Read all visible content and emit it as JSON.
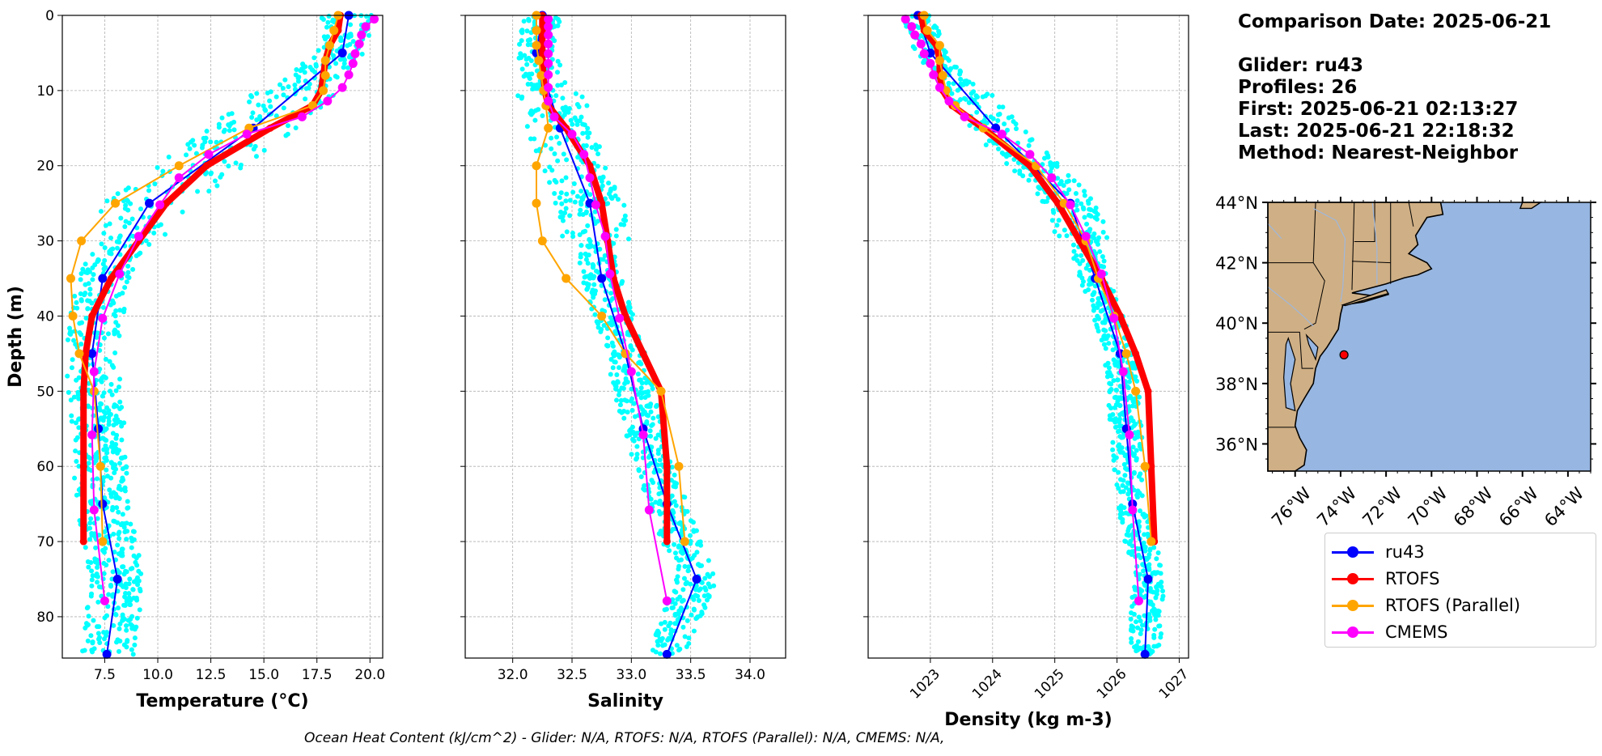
{
  "info": {
    "comparison": "Comparison Date: 2025-06-21",
    "glider": "Glider: ru43",
    "profiles": "Profiles: 26",
    "first": "First: 2025-06-21 02:13:27",
    "last": "Last: 2025-06-21 22:18:32",
    "method": "Method: Nearest-Neighbor"
  },
  "footer": "Ocean Heat Content (kJ/cm^2) - Glider: N/A,  RTOFS: N/A,  RTOFS (Parallel): N/A,  CMEMS: N/A,",
  "legend": [
    {
      "label": "ru43",
      "color": "#0000ff"
    },
    {
      "label": "RTOFS",
      "color": "#ff0000"
    },
    {
      "label": "RTOFS (Parallel)",
      "color": "#ffa500"
    },
    {
      "label": "CMEMS",
      "color": "#ff00ff"
    }
  ],
  "chart_data": [
    {
      "type": "line",
      "xlabel": "Temperature (°C)",
      "ylabel": "Depth (m)",
      "xlim": [
        5.5,
        20.6
      ],
      "ylim": [
        85.5,
        0
      ],
      "xticks": [
        7.5,
        10.0,
        12.5,
        15.0,
        17.5,
        20.0
      ],
      "yticks": [
        0,
        10,
        20,
        30,
        40,
        50,
        60,
        70,
        80
      ],
      "grid": true,
      "scatter_color": "#00ffff",
      "scatter_note": "glider raw profiles (cyan points)",
      "series": [
        {
          "name": "ru43",
          "color": "#0000ff",
          "depth": [
            0,
            5,
            15,
            25,
            35,
            45,
            55,
            65,
            75,
            85
          ],
          "values": [
            19.0,
            18.7,
            14.5,
            9.6,
            7.4,
            6.9,
            7.2,
            7.4,
            8.1,
            7.6
          ]
        },
        {
          "name": "RTOFS",
          "color": "#ff0000",
          "depth": [
            0,
            2,
            4,
            6,
            8,
            10,
            12,
            15,
            20,
            25,
            30,
            35,
            40,
            45,
            50,
            60,
            70
          ],
          "values": [
            18.6,
            18.5,
            18.1,
            17.9,
            17.8,
            17.7,
            17.3,
            15.3,
            12.3,
            10.4,
            9.1,
            7.8,
            6.9,
            6.6,
            6.5,
            6.5,
            6.5
          ]
        },
        {
          "name": "RTOFS (Parallel)",
          "color": "#ffa500",
          "depth": [
            0,
            2,
            4,
            6,
            8,
            10,
            12,
            15,
            20,
            25,
            30,
            35,
            40,
            45,
            50,
            60,
            70
          ],
          "values": [
            18.5,
            18.3,
            18.1,
            17.9,
            17.9,
            17.8,
            17.3,
            14.3,
            11.0,
            8.0,
            6.4,
            5.9,
            6.0,
            6.3,
            7.0,
            7.3,
            7.4
          ]
        },
        {
          "name": "CMEMS",
          "color": "#ff00ff",
          "depth": [
            0.5,
            1.5,
            2.6,
            3.8,
            5.1,
            6.4,
            7.9,
            9.6,
            11.4,
            13.5,
            15.8,
            18.5,
            21.6,
            25.2,
            29.4,
            34.4,
            40.3,
            47.4,
            55.8,
            65.8,
            77.9
          ],
          "values": [
            20.2,
            19.8,
            19.6,
            19.5,
            19.3,
            19.2,
            19.0,
            18.7,
            18.0,
            16.8,
            14.2,
            12.4,
            11.0,
            10.1,
            9.1,
            8.2,
            7.4,
            7.0,
            6.9,
            7.0,
            7.5
          ]
        }
      ]
    },
    {
      "type": "line",
      "xlabel": "Salinity",
      "xlim": [
        31.6,
        34.3
      ],
      "ylim": [
        85.5,
        0
      ],
      "xticks": [
        32.0,
        32.5,
        33.0,
        33.5,
        34.0
      ],
      "yticks": [
        0,
        10,
        20,
        30,
        40,
        50,
        60,
        70,
        80
      ],
      "grid": true,
      "series": [
        {
          "name": "ru43",
          "color": "#0000ff",
          "depth": [
            0,
            5,
            15,
            25,
            35,
            45,
            55,
            65,
            75,
            85
          ],
          "values": [
            32.25,
            32.2,
            32.4,
            32.65,
            32.75,
            32.95,
            33.1,
            33.3,
            33.55,
            33.3
          ]
        },
        {
          "name": "RTOFS",
          "color": "#ff0000",
          "depth": [
            0,
            2,
            4,
            6,
            8,
            10,
            12,
            15,
            20,
            25,
            30,
            35,
            40,
            45,
            50,
            60,
            70
          ],
          "values": [
            32.25,
            32.25,
            32.25,
            32.25,
            32.26,
            32.27,
            32.3,
            32.45,
            32.65,
            32.75,
            32.8,
            32.85,
            32.95,
            33.1,
            33.25,
            33.3,
            33.3
          ]
        },
        {
          "name": "RTOFS (Parallel)",
          "color": "#ffa500",
          "depth": [
            0,
            2,
            4,
            6,
            8,
            10,
            12,
            15,
            20,
            25,
            30,
            35,
            40,
            45,
            50,
            60,
            70
          ],
          "values": [
            32.2,
            32.2,
            32.2,
            32.22,
            32.24,
            32.26,
            32.28,
            32.3,
            32.2,
            32.2,
            32.25,
            32.45,
            32.75,
            32.95,
            33.25,
            33.4,
            33.45
          ]
        },
        {
          "name": "CMEMS",
          "color": "#ff00ff",
          "depth": [
            0.5,
            1.5,
            2.6,
            3.8,
            5.1,
            6.4,
            7.9,
            9.6,
            11.4,
            13.5,
            15.8,
            18.5,
            21.6,
            25.2,
            29.4,
            34.4,
            40.3,
            47.4,
            55.8,
            65.8,
            77.9
          ],
          "values": [
            32.3,
            32.3,
            32.3,
            32.3,
            32.3,
            32.3,
            32.3,
            32.3,
            32.3,
            32.35,
            32.5,
            32.6,
            32.65,
            32.7,
            32.78,
            32.82,
            32.9,
            33.0,
            33.1,
            33.15,
            33.3
          ]
        }
      ]
    },
    {
      "type": "line",
      "xlabel": "Density (kg m-3)",
      "xlim": [
        1022.0,
        1027.15
      ],
      "ylim": [
        85.5,
        0
      ],
      "xticks": [
        1023,
        1024,
        1025,
        1026,
        1027
      ],
      "yticks": [
        0,
        10,
        20,
        30,
        40,
        50,
        60,
        70,
        80
      ],
      "grid": true,
      "series": [
        {
          "name": "ru43",
          "color": "#0000ff",
          "depth": [
            0,
            5,
            15,
            25,
            35,
            45,
            55,
            65,
            75,
            85
          ],
          "values": [
            1022.8,
            1023.0,
            1024.05,
            1025.25,
            1025.65,
            1026.05,
            1026.15,
            1026.25,
            1026.5,
            1026.45
          ]
        },
        {
          "name": "RTOFS",
          "color": "#ff0000",
          "depth": [
            0,
            2,
            4,
            6,
            8,
            10,
            12,
            15,
            20,
            25,
            30,
            35,
            40,
            45,
            50,
            60,
            70
          ],
          "values": [
            1022.85,
            1022.9,
            1023.1,
            1023.15,
            1023.15,
            1023.2,
            1023.35,
            1023.85,
            1024.6,
            1025.05,
            1025.4,
            1025.75,
            1026.05,
            1026.3,
            1026.5,
            1026.55,
            1026.6
          ]
        },
        {
          "name": "RTOFS (Parallel)",
          "color": "#ffa500",
          "depth": [
            0,
            2,
            4,
            6,
            8,
            10,
            12,
            15,
            20,
            25,
            30,
            35,
            40,
            45,
            50,
            60,
            70
          ],
          "values": [
            1022.9,
            1022.95,
            1023.15,
            1023.15,
            1023.2,
            1023.25,
            1023.4,
            1023.85,
            1024.7,
            1025.15,
            1025.5,
            1025.7,
            1025.95,
            1026.15,
            1026.3,
            1026.45,
            1026.55
          ]
        },
        {
          "name": "CMEMS",
          "color": "#ff00ff",
          "depth": [
            0.5,
            1.5,
            2.6,
            3.8,
            5.1,
            6.4,
            7.9,
            9.6,
            11.4,
            13.5,
            15.8,
            18.5,
            21.6,
            25.2,
            29.4,
            34.4,
            40.3,
            47.4,
            55.8,
            65.8,
            77.9
          ],
          "values": [
            1022.6,
            1022.7,
            1022.75,
            1022.85,
            1022.9,
            1023.0,
            1023.05,
            1023.15,
            1023.3,
            1023.55,
            1024.15,
            1024.6,
            1024.95,
            1025.25,
            1025.5,
            1025.75,
            1025.95,
            1026.1,
            1026.2,
            1026.25,
            1026.35
          ]
        }
      ]
    },
    {
      "type": "map",
      "lon_range": [
        -77.2,
        -63.0
      ],
      "lat_range": [
        35.1,
        44.0
      ],
      "xticks": [
        "76°W",
        "74°W",
        "72°W",
        "70°W",
        "68°W",
        "66°W",
        "64°W"
      ],
      "yticks": [
        "44°N",
        "42°N",
        "40°N",
        "38°N",
        "36°N"
      ],
      "land_color": "#cfaf85",
      "ocean_color": "#97b6e1",
      "marker": {
        "lon": -73.85,
        "lat": 38.95,
        "color": "#ff0000"
      }
    }
  ]
}
